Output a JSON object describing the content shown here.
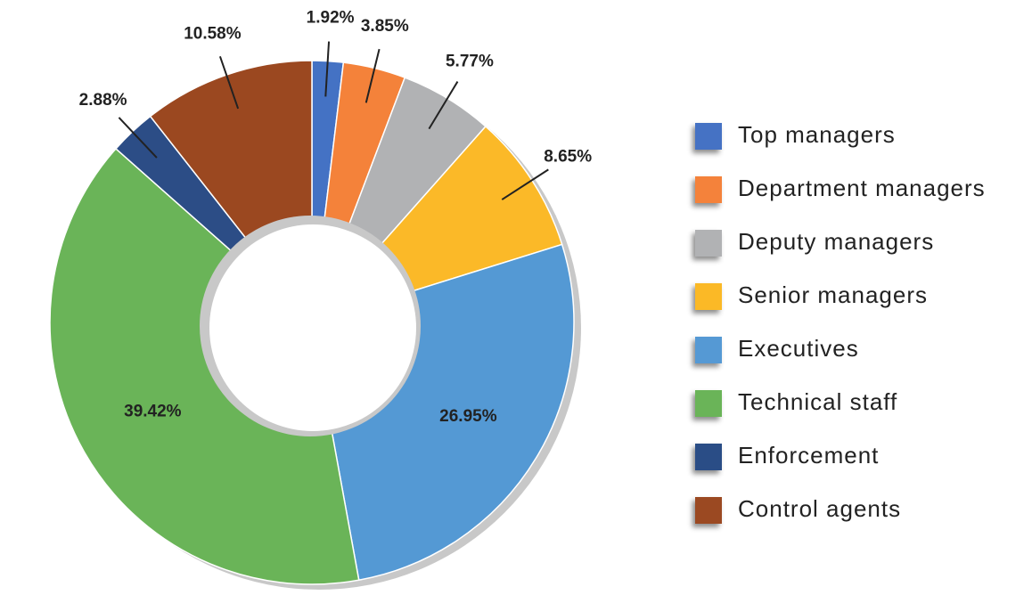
{
  "chart_data": {
    "type": "donut",
    "categories": [
      "Top managers",
      "Department managers",
      "Deputy managers",
      "Senior managers",
      "Executives",
      "Technical staff",
      "Enforcement",
      "Control agents"
    ],
    "values": [
      1.92,
      3.85,
      5.77,
      8.65,
      26.95,
      39.42,
      2.88,
      10.58
    ],
    "value_labels": [
      "1.92%",
      "3.85%",
      "5.77%",
      "8.65%",
      "26.95%",
      "39.42%",
      "2.88%",
      "10.58%"
    ],
    "colors": [
      "#4472c4",
      "#f4823a",
      "#b1b2b4",
      "#fbb928",
      "#5499d4",
      "#6ab458",
      "#2c4d86",
      "#9b4820"
    ],
    "legend": "right"
  }
}
